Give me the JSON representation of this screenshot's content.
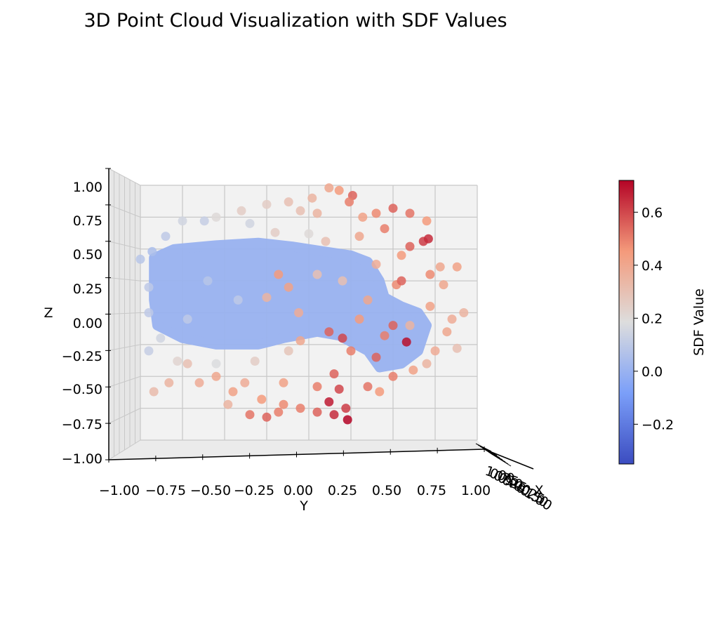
{
  "chart_data": {
    "type": "scatter",
    "projection": "3d",
    "title": "3D Point Cloud Visualization with SDF Values",
    "xlabel": "X",
    "ylabel": "Y",
    "zlabel": "Z",
    "view": "front (looking along X axis; Y horizontal, Z vertical)",
    "xlim": [
      -1.0,
      1.0
    ],
    "ylim": [
      -1.0,
      1.0
    ],
    "zlim": [
      -1.0,
      1.0
    ],
    "y_ticks": [
      "−1.00",
      "−0.75",
      "−0.50",
      "−0.25",
      "0.00",
      "0.25",
      "0.50",
      "0.75",
      "1.00"
    ],
    "z_ticks": [
      "1.00",
      "0.75",
      "0.50",
      "0.25",
      "0.00",
      "−0.25",
      "−0.50",
      "−0.75",
      "−1.00"
    ],
    "x_ticks_note": "overlapping, illegible tick labels on foreshortened X axis",
    "x_tick_overlap": [
      "1.00",
      "0.75",
      "0.50",
      "0.25",
      "0.00",
      "−0.25",
      "−0.50",
      "−1.00"
    ],
    "grid": true,
    "colorbar": {
      "label": "SDF Value",
      "colormap": "coolwarm",
      "range": [
        -0.35,
        0.72
      ],
      "ticks": [
        0.6,
        0.4,
        0.2,
        0.0,
        -0.2
      ],
      "tick_labels": [
        "0.6",
        "0.4",
        "0.2",
        "0.0",
        "−0.2"
      ]
    },
    "surface_cloud": {
      "sdf": 0.0,
      "description": "dense surface points, SDF near 0",
      "outline_yz": [
        [
          -0.92,
          0.43
        ],
        [
          -0.8,
          0.5
        ],
        [
          -0.55,
          0.53
        ],
        [
          -0.3,
          0.55
        ],
        [
          -0.1,
          0.52
        ],
        [
          0.1,
          0.48
        ],
        [
          0.25,
          0.45
        ],
        [
          0.35,
          0.4
        ],
        [
          0.42,
          0.25
        ],
        [
          0.45,
          0.12
        ],
        [
          0.55,
          0.05
        ],
        [
          0.65,
          0.0
        ],
        [
          0.7,
          -0.1
        ],
        [
          0.65,
          -0.3
        ],
        [
          0.55,
          -0.4
        ],
        [
          0.42,
          -0.43
        ],
        [
          0.35,
          -0.3
        ],
        [
          0.28,
          -0.25
        ],
        [
          0.18,
          -0.18
        ],
        [
          0.05,
          -0.15
        ],
        [
          -0.15,
          -0.2
        ],
        [
          -0.3,
          -0.25
        ],
        [
          -0.55,
          -0.25
        ],
        [
          -0.75,
          -0.2
        ],
        [
          -0.9,
          -0.1
        ],
        [
          -0.92,
          0.1
        ]
      ]
    },
    "points": [
      {
        "y": 0.12,
        "z": 0.98,
        "sdf": 0.4
      },
      {
        "y": 0.18,
        "z": 0.96,
        "sdf": 0.45
      },
      {
        "y": 0.26,
        "z": 0.92,
        "sdf": 0.55
      },
      {
        "y": 0.02,
        "z": 0.9,
        "sdf": 0.35
      },
      {
        "y": -0.12,
        "z": 0.87,
        "sdf": 0.3
      },
      {
        "y": -0.25,
        "z": 0.85,
        "sdf": 0.25
      },
      {
        "y": 0.24,
        "z": 0.87,
        "sdf": 0.5
      },
      {
        "y": 0.5,
        "z": 0.82,
        "sdf": 0.55
      },
      {
        "y": 0.6,
        "z": 0.78,
        "sdf": 0.52
      },
      {
        "y": 0.7,
        "z": 0.72,
        "sdf": 0.45
      },
      {
        "y": -0.4,
        "z": 0.8,
        "sdf": 0.25
      },
      {
        "y": -0.55,
        "z": 0.75,
        "sdf": 0.2
      },
      {
        "y": -0.75,
        "z": 0.72,
        "sdf": 0.15
      },
      {
        "y": 0.4,
        "z": 0.78,
        "sdf": 0.48
      },
      {
        "y": 0.32,
        "z": 0.75,
        "sdf": 0.42
      },
      {
        "y": 0.05,
        "z": 0.78,
        "sdf": 0.35
      },
      {
        "y": -0.05,
        "z": 0.8,
        "sdf": 0.3
      },
      {
        "y": 0.45,
        "z": 0.66,
        "sdf": 0.5
      },
      {
        "y": 0.68,
        "z": 0.56,
        "sdf": 0.62
      },
      {
        "y": 0.71,
        "z": 0.58,
        "sdf": 0.65
      },
      {
        "y": 0.6,
        "z": 0.52,
        "sdf": 0.55
      },
      {
        "y": 0.78,
        "z": 0.36,
        "sdf": 0.4
      },
      {
        "y": 0.72,
        "z": 0.3,
        "sdf": 0.48
      },
      {
        "y": 0.88,
        "z": 0.36,
        "sdf": 0.42
      },
      {
        "y": 0.52,
        "z": 0.22,
        "sdf": 0.48
      },
      {
        "y": 0.55,
        "z": 0.25,
        "sdf": 0.55
      },
      {
        "y": 0.8,
        "z": 0.22,
        "sdf": 0.4
      },
      {
        "y": 0.72,
        "z": 0.05,
        "sdf": 0.42
      },
      {
        "y": 0.92,
        "z": 0.0,
        "sdf": 0.35
      },
      {
        "y": 0.85,
        "z": -0.05,
        "sdf": 0.38
      },
      {
        "y": 0.82,
        "z": -0.15,
        "sdf": 0.4
      },
      {
        "y": 0.75,
        "z": -0.3,
        "sdf": 0.38
      },
      {
        "y": 0.58,
        "z": -0.23,
        "sdf": 0.7
      },
      {
        "y": 0.7,
        "z": -0.4,
        "sdf": 0.35
      },
      {
        "y": 0.88,
        "z": -0.28,
        "sdf": 0.3
      },
      {
        "y": 0.5,
        "z": -0.5,
        "sdf": 0.5
      },
      {
        "y": 0.4,
        "z": -0.35,
        "sdf": 0.55
      },
      {
        "y": 0.25,
        "z": -0.3,
        "sdf": 0.5
      },
      {
        "y": 0.2,
        "z": -0.2,
        "sdf": 0.6
      },
      {
        "y": 0.12,
        "z": -0.15,
        "sdf": 0.55
      },
      {
        "y": 0.35,
        "z": -0.58,
        "sdf": 0.52
      },
      {
        "y": 0.18,
        "z": -0.6,
        "sdf": 0.6
      },
      {
        "y": 0.15,
        "z": -0.48,
        "sdf": 0.55
      },
      {
        "y": 0.12,
        "z": -0.7,
        "sdf": 0.68
      },
      {
        "y": 0.22,
        "z": -0.75,
        "sdf": 0.62
      },
      {
        "y": 0.23,
        "z": -0.84,
        "sdf": 0.72
      },
      {
        "y": 0.15,
        "z": -0.8,
        "sdf": 0.65
      },
      {
        "y": 0.05,
        "z": -0.78,
        "sdf": 0.55
      },
      {
        "y": -0.05,
        "z": -0.75,
        "sdf": 0.5
      },
      {
        "y": -0.15,
        "z": -0.72,
        "sdf": 0.48
      },
      {
        "y": -0.28,
        "z": -0.68,
        "sdf": 0.45
      },
      {
        "y": -0.35,
        "z": -0.8,
        "sdf": 0.52
      },
      {
        "y": -0.25,
        "z": -0.82,
        "sdf": 0.55
      },
      {
        "y": -0.18,
        "z": -0.78,
        "sdf": 0.5
      },
      {
        "y": -0.45,
        "z": -0.62,
        "sdf": 0.42
      },
      {
        "y": -0.55,
        "z": -0.5,
        "sdf": 0.4
      },
      {
        "y": -0.48,
        "z": -0.72,
        "sdf": 0.35
      },
      {
        "y": -0.65,
        "z": -0.55,
        "sdf": 0.38
      },
      {
        "y": -0.72,
        "z": -0.4,
        "sdf": 0.3
      },
      {
        "y": -0.83,
        "z": -0.55,
        "sdf": 0.35
      },
      {
        "y": -0.92,
        "z": -0.62,
        "sdf": 0.32
      },
      {
        "y": -0.95,
        "z": -0.3,
        "sdf": 0.12
      },
      {
        "y": -0.88,
        "z": -0.2,
        "sdf": 0.15
      },
      {
        "y": -0.95,
        "z": 0.0,
        "sdf": 0.1
      },
      {
        "y": -0.95,
        "z": 0.2,
        "sdf": 0.1
      },
      {
        "y": -1.0,
        "z": 0.42,
        "sdf": 0.08
      },
      {
        "y": -0.93,
        "z": 0.48,
        "sdf": 0.05
      },
      {
        "y": -0.62,
        "z": 0.72,
        "sdf": 0.12
      },
      {
        "y": -0.85,
        "z": 0.6,
        "sdf": 0.1
      },
      {
        "y": -0.35,
        "z": 0.7,
        "sdf": 0.15
      },
      {
        "y": -0.2,
        "z": 0.63,
        "sdf": 0.25
      },
      {
        "y": 0.1,
        "z": 0.56,
        "sdf": 0.3
      },
      {
        "y": -0.18,
        "z": 0.3,
        "sdf": 0.45
      },
      {
        "y": -0.12,
        "z": 0.2,
        "sdf": 0.42
      },
      {
        "y": -0.25,
        "z": 0.12,
        "sdf": 0.35
      },
      {
        "y": -0.06,
        "z": 0.0,
        "sdf": 0.38
      },
      {
        "y": 0.05,
        "z": 0.3,
        "sdf": 0.3
      },
      {
        "y": -0.05,
        "z": -0.22,
        "sdf": 0.4
      },
      {
        "y": -0.32,
        "z": -0.38,
        "sdf": 0.25
      },
      {
        "y": -0.12,
        "z": -0.3,
        "sdf": 0.28
      },
      {
        "y": -0.55,
        "z": -0.4,
        "sdf": 0.18
      },
      {
        "y": -0.78,
        "z": -0.38,
        "sdf": 0.22
      },
      {
        "y": 0.35,
        "z": 0.1,
        "sdf": 0.4
      },
      {
        "y": 0.3,
        "z": -0.05,
        "sdf": 0.45
      },
      {
        "y": 0.5,
        "z": -0.1,
        "sdf": 0.55
      },
      {
        "y": 0.45,
        "z": -0.18,
        "sdf": 0.5
      },
      {
        "y": 0.6,
        "z": -0.1,
        "sdf": 0.35
      },
      {
        "y": 0.4,
        "z": 0.38,
        "sdf": 0.38
      },
      {
        "y": 0.2,
        "z": 0.25,
        "sdf": 0.3
      },
      {
        "y": -0.42,
        "z": 0.1,
        "sdf": 0.1
      },
      {
        "y": -0.6,
        "z": 0.25,
        "sdf": 0.08
      },
      {
        "y": -0.72,
        "z": -0.05,
        "sdf": 0.1
      },
      {
        "y": 0.0,
        "z": 0.62,
        "sdf": 0.2
      },
      {
        "y": 0.3,
        "z": 0.6,
        "sdf": 0.4
      },
      {
        "y": 0.55,
        "z": 0.45,
        "sdf": 0.45
      },
      {
        "y": 0.62,
        "z": -0.45,
        "sdf": 0.42
      },
      {
        "y": 0.42,
        "z": -0.62,
        "sdf": 0.45
      },
      {
        "y": -0.38,
        "z": -0.55,
        "sdf": 0.38
      },
      {
        "y": -0.15,
        "z": -0.55,
        "sdf": 0.42
      },
      {
        "y": 0.05,
        "z": -0.58,
        "sdf": 0.5
      }
    ]
  }
}
